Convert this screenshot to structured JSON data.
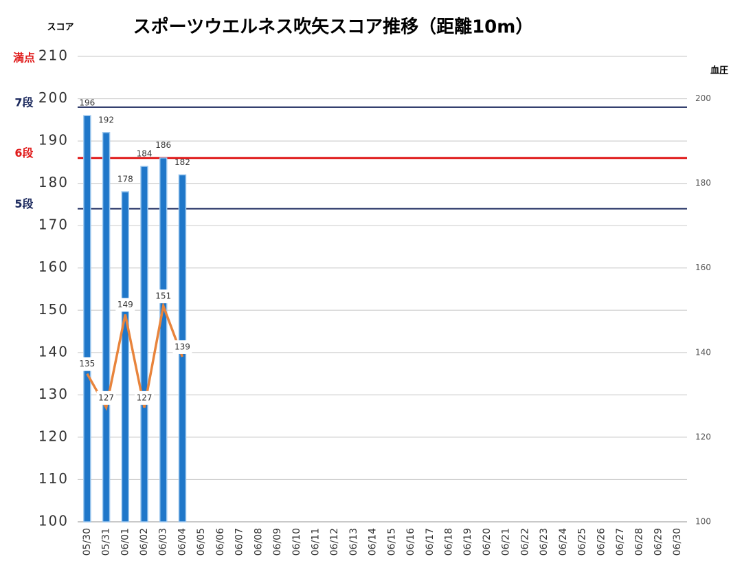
{
  "chart_data": {
    "type": "bar",
    "title": "スポーツウエルネス吹矢スコア推移（距離10m）",
    "y_label": "スコア",
    "y2_label": "血圧",
    "categories": [
      "05/30",
      "05/31",
      "06/01",
      "06/02",
      "06/03",
      "06/04",
      "06/05",
      "06/06",
      "06/07",
      "06/08",
      "06/09",
      "06/10",
      "06/11",
      "06/12",
      "06/13",
      "06/14",
      "06/15",
      "06/16",
      "06/17",
      "06/18",
      "06/19",
      "06/20",
      "06/21",
      "06/22",
      "06/23",
      "06/24",
      "06/25",
      "06/26",
      "06/27",
      "06/28",
      "06/29",
      "06/30"
    ],
    "series": [
      {
        "name": "スコア",
        "type": "bar",
        "color": "#1f77c9",
        "values": [
          196,
          192,
          178,
          184,
          186,
          182,
          null,
          null,
          null,
          null,
          null,
          null,
          null,
          null,
          null,
          null,
          null,
          null,
          null,
          null,
          null,
          null,
          null,
          null,
          null,
          null,
          null,
          null,
          null,
          null,
          null,
          null
        ]
      },
      {
        "name": "血圧",
        "type": "line",
        "axis": "y2",
        "color": "#e8843c",
        "values": [
          135,
          127,
          149,
          127,
          151,
          139,
          null,
          null,
          null,
          null,
          null,
          null,
          null,
          null,
          null,
          null,
          null,
          null,
          null,
          null,
          null,
          null,
          null,
          null,
          null,
          null,
          null,
          null,
          null,
          null,
          null,
          null
        ]
      }
    ],
    "ylim": [
      100,
      210
    ],
    "yticks": [
      100,
      110,
      120,
      130,
      140,
      150,
      160,
      170,
      180,
      190,
      200,
      210
    ],
    "y2lim": [
      100,
      210
    ],
    "y2ticks": [
      100,
      120,
      140,
      160,
      180,
      200
    ],
    "grid": true,
    "reference_lines": [
      {
        "label": "7段",
        "value": 198,
        "color": "#1c2a5e"
      },
      {
        "label": "6段",
        "value": 186,
        "color": "#e01b1b"
      },
      {
        "label": "5段",
        "value": 174,
        "color": "#1c2a5e"
      }
    ],
    "annotations": [
      {
        "label": "満点",
        "value": 210,
        "color": "#e01b1b"
      }
    ]
  }
}
